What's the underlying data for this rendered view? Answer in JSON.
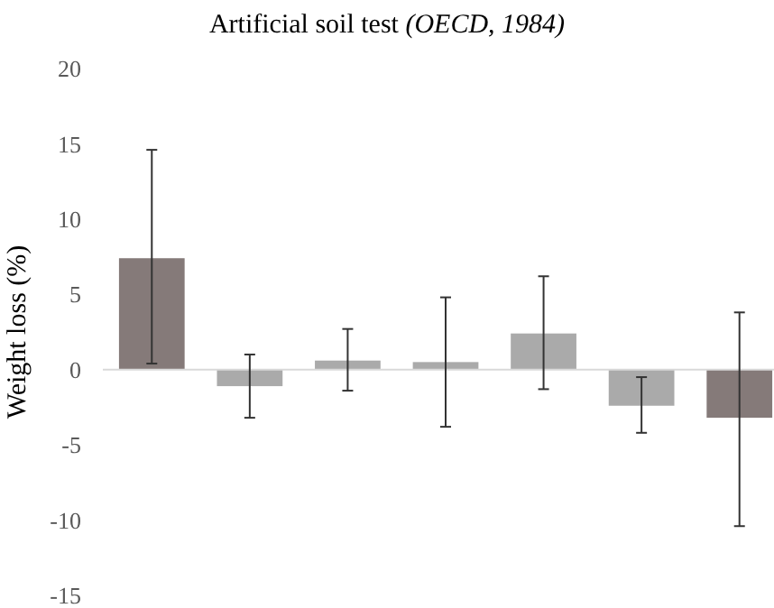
{
  "chart_data": {
    "type": "bar",
    "title": "Artificial soil test (OECD, 1984)",
    "ylabel": "Weight loss (%)",
    "categories": [
      null,
      null,
      null,
      null,
      null,
      null,
      null
    ],
    "values": [
      7.4,
      -1.1,
      0.6,
      0.5,
      2.4,
      -2.4,
      -3.2
    ],
    "colors": [
      "#857a79",
      "#aaaaaa",
      "#aaaaaa",
      "#aaaaaa",
      "#aaaaaa",
      "#aaaaaa",
      "#857a79"
    ],
    "errors": [
      [
        0.4,
        14.6
      ],
      [
        -3.2,
        1.0
      ],
      [
        -1.4,
        2.7
      ],
      [
        -3.8,
        4.8
      ],
      [
        -1.3,
        6.2
      ],
      [
        -4.2,
        -0.5
      ],
      [
        -10.4,
        3.8
      ]
    ],
    "ref_lines": [
      {
        "axis": "y",
        "value": 0,
        "color": "#d9d9d9"
      }
    ],
    "ylim": [
      -15,
      20
    ],
    "yticks": [
      -15,
      -10,
      -5,
      0,
      5,
      10,
      15,
      20
    ],
    "grid": false
  }
}
